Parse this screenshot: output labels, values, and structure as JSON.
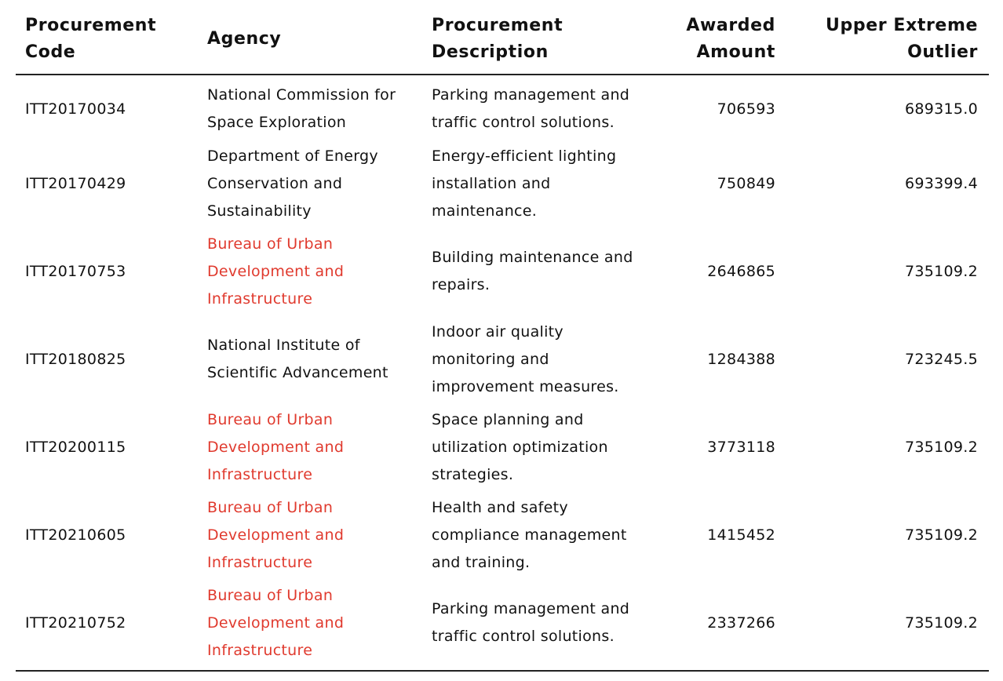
{
  "table": {
    "headers": {
      "code": [
        "Procurement",
        "Code"
      ],
      "agency": [
        "Agency"
      ],
      "description": [
        "Procurement",
        "Description"
      ],
      "amount": [
        "Awarded",
        "Amount"
      ],
      "outlier": [
        "Upper Extreme",
        "Outlier"
      ]
    },
    "highlight_color": "#e03a2e",
    "rows": [
      {
        "code": "ITT20170034",
        "agency": [
          "National Commission for",
          "Space Exploration"
        ],
        "agency_highlight": false,
        "description": [
          "Parking management and",
          "traffic control solutions."
        ],
        "amount": "706593",
        "outlier": "689315.0"
      },
      {
        "code": "ITT20170429",
        "agency": [
          "Department of Energy",
          "Conservation and",
          "Sustainability"
        ],
        "agency_highlight": false,
        "description": [
          "Energy-efficient lighting",
          "installation and",
          "maintenance."
        ],
        "amount": "750849",
        "outlier": "693399.4"
      },
      {
        "code": "ITT20170753",
        "agency": [
          "Bureau of Urban",
          "Development and",
          "Infrastructure"
        ],
        "agency_highlight": true,
        "description": [
          "Building maintenance and",
          "repairs."
        ],
        "amount": "2646865",
        "outlier": "735109.2"
      },
      {
        "code": "ITT20180825",
        "agency": [
          "National Institute of",
          "Scientific Advancement"
        ],
        "agency_highlight": false,
        "description": [
          "Indoor air quality",
          "monitoring and",
          "improvement measures."
        ],
        "amount": "1284388",
        "outlier": "723245.5"
      },
      {
        "code": "ITT20200115",
        "agency": [
          "Bureau of Urban",
          "Development and",
          "Infrastructure"
        ],
        "agency_highlight": true,
        "description": [
          "Space planning and",
          "utilization optimization",
          "strategies."
        ],
        "amount": "3773118",
        "outlier": "735109.2"
      },
      {
        "code": "ITT20210605",
        "agency": [
          "Bureau of Urban",
          "Development and",
          "Infrastructure"
        ],
        "agency_highlight": true,
        "description": [
          "Health and safety",
          "compliance management",
          "and training."
        ],
        "amount": "1415452",
        "outlier": "735109.2"
      },
      {
        "code": "ITT20210752",
        "agency": [
          "Bureau of Urban",
          "Development and",
          "Infrastructure"
        ],
        "agency_highlight": true,
        "description": [
          "Parking management and",
          "traffic control solutions."
        ],
        "amount": "2337266",
        "outlier": "735109.2"
      }
    ]
  }
}
